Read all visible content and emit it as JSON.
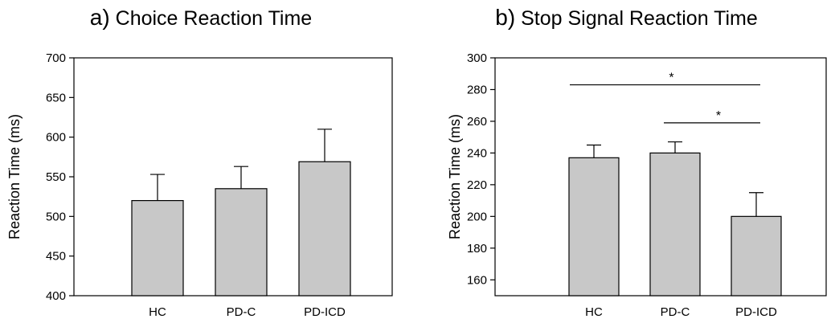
{
  "chart_data": [
    {
      "type": "bar",
      "panel_label": "a)",
      "title": "Choice Reaction Time",
      "ylabel": "Reaction Time (ms)",
      "xlabel": "",
      "categories": [
        "HC",
        "PD-C",
        "PD-ICD"
      ],
      "values": [
        520,
        535,
        569
      ],
      "errors": [
        33,
        28,
        41
      ],
      "ylim": [
        400,
        700
      ],
      "yticks": [
        400,
        450,
        500,
        550,
        600,
        650,
        700
      ],
      "grid": false,
      "bar_color": "#c8c8c8",
      "significance": []
    },
    {
      "type": "bar",
      "panel_label": "b)",
      "title": "Stop Signal Reaction Time",
      "ylabel": "Reaction Time (ms)",
      "xlabel": "",
      "categories": [
        "HC",
        "PD-C",
        "PD-ICD"
      ],
      "values": [
        237,
        240,
        200
      ],
      "errors": [
        8,
        7,
        15
      ],
      "ylim": [
        150,
        300
      ],
      "yticks": [
        160,
        180,
        200,
        220,
        240,
        260,
        280,
        300
      ],
      "grid": false,
      "bar_color": "#c8c8c8",
      "significance": [
        {
          "from": "HC",
          "to": "PD-ICD",
          "y": 283,
          "label": "*"
        },
        {
          "from": "PD-C",
          "to": "PD-ICD",
          "y": 259,
          "label": "*"
        }
      ]
    }
  ]
}
